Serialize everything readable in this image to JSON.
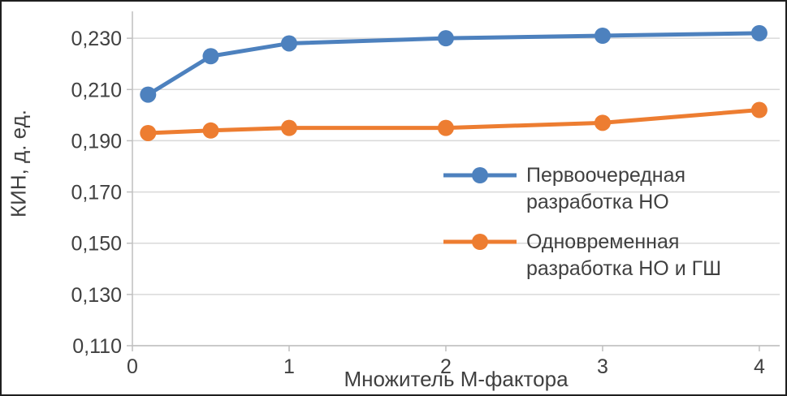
{
  "chart_data": {
    "type": "line",
    "title": "",
    "x": [
      0.1,
      0.5,
      1,
      2,
      3,
      4
    ],
    "series": [
      {
        "name": "Первоочередная разработка НО",
        "color": "#4D81BE",
        "values": [
          0.208,
          0.223,
          0.228,
          0.23,
          0.231,
          0.232
        ]
      },
      {
        "name": "Одновременная разработка НО и ГШ",
        "color": "#ED7D31",
        "values": [
          0.193,
          0.194,
          0.195,
          0.195,
          0.197,
          0.202
        ]
      }
    ],
    "xlabel": "Множитель М-фактора",
    "ylabel": "КИН, д. ед.",
    "xlim": [
      0,
      4.13
    ],
    "ylim": [
      0.11,
      0.2405
    ],
    "xticks": [
      "0",
      "1",
      "2",
      "3",
      "4"
    ],
    "xtick_values": [
      0,
      1,
      2,
      3,
      4
    ],
    "yticks": [
      "0,110",
      "0,130",
      "0,150",
      "0,170",
      "0,190",
      "0,210",
      "0,230"
    ],
    "ytick_values": [
      0.11,
      0.13,
      0.15,
      0.17,
      0.19,
      0.21,
      0.23
    ],
    "grid": true,
    "legend_position": "inside-right",
    "grid_color": "#D9D9D9",
    "axis_color": "#BFBFBF",
    "text_color": "#404040",
    "marker": "circle",
    "line_width": 5,
    "marker_radius": 10
  }
}
